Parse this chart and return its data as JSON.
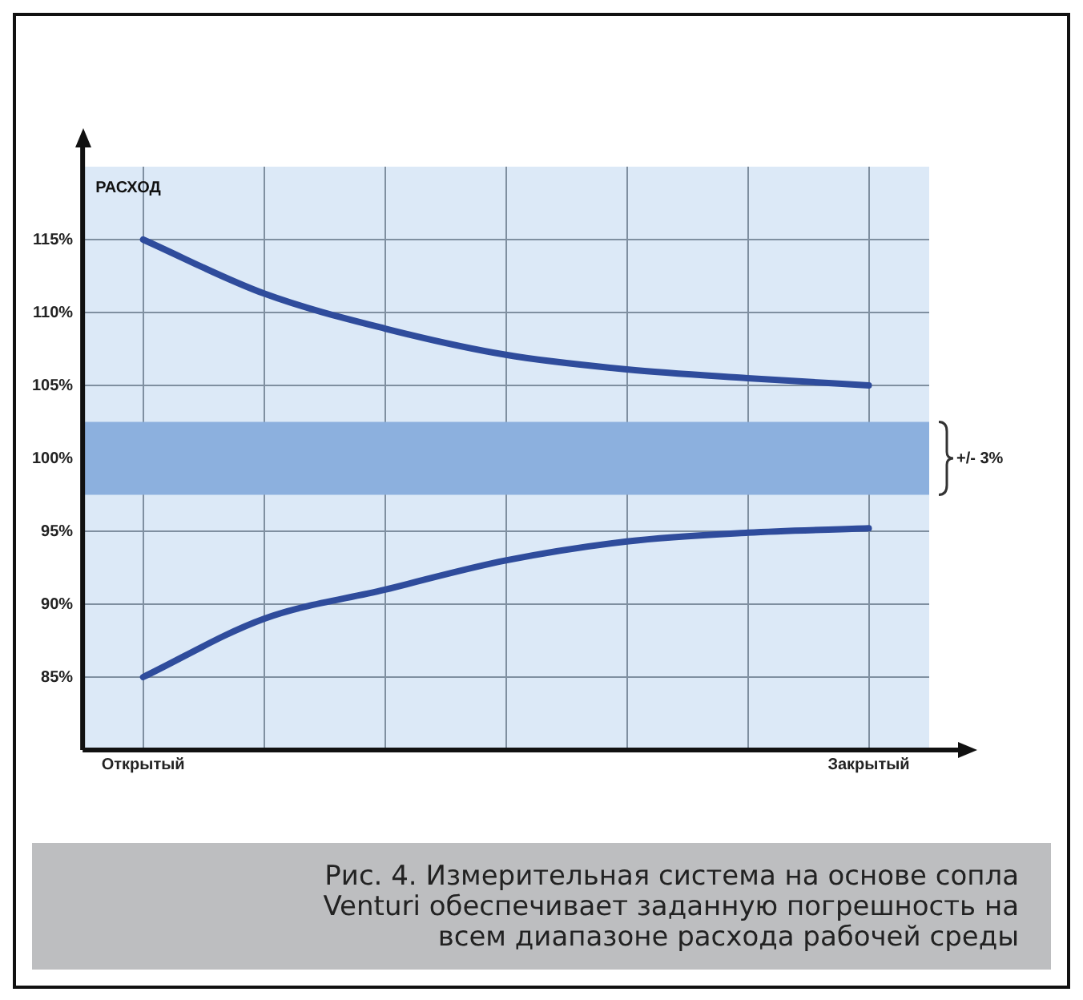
{
  "chart_data": {
    "type": "line",
    "ylabel": "РАСХОД",
    "categories": [
      "Открытый",
      null,
      null,
      null,
      null,
      null,
      "Закрытый"
    ],
    "ylim": [
      80,
      120
    ],
    "yticks": [
      {
        "value": 85,
        "label": "85%"
      },
      {
        "value": 90,
        "label": "90%"
      },
      {
        "value": 95,
        "label": "95%"
      },
      {
        "value": 100,
        "label": "100%"
      },
      {
        "value": 105,
        "label": "105%"
      },
      {
        "value": 110,
        "label": "110%"
      },
      {
        "value": 115,
        "label": "115%"
      }
    ],
    "series": [
      {
        "color": "#2f4c9c",
        "values": [
          115,
          111.3,
          108.9,
          107.1,
          106.1,
          105.5,
          105.0
        ]
      },
      {
        "color": "#2f4c9c",
        "values": [
          85,
          89.0,
          91.0,
          93.0,
          94.3,
          94.9,
          95.2
        ]
      }
    ],
    "bands": [
      {
        "axis": "y",
        "from": 97.5,
        "to": 102.5,
        "label": "+/- 3%",
        "color": "#8cb0de"
      }
    ],
    "grid": true,
    "legend": false,
    "marker": "none",
    "line_style": "solid",
    "annotations": [
      "Рис. 4. Измерительная система на основе сопла Venturi обеспечивает заданную погрешность на всем диапазоне расхода рабочей среды"
    ]
  }
}
